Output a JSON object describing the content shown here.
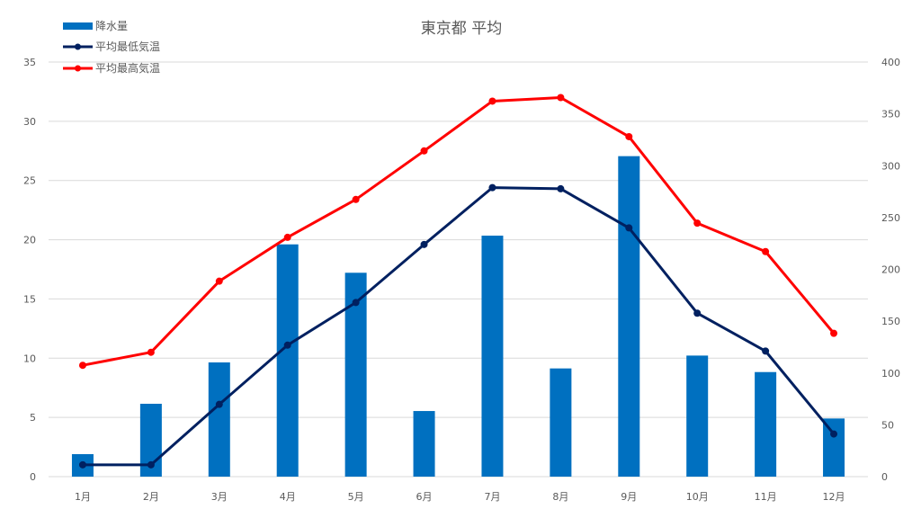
{
  "chart_data": {
    "type": "bar+line",
    "title": "東京都 平均",
    "categories": [
      "1月",
      "2月",
      "3月",
      "4月",
      "5月",
      "6月",
      "7月",
      "8月",
      "9月",
      "10月",
      "11月",
      "12月"
    ],
    "series": [
      {
        "name": "降水量",
        "type": "bar",
        "axis": "right",
        "color": "#0070C0",
        "values": [
          21.7,
          70.3,
          110.2,
          224.1,
          196.7,
          63.3,
          232.5,
          104.4,
          309.2,
          116.8,
          100.9,
          56.1
        ]
      },
      {
        "name": "平均最低気温",
        "type": "line",
        "axis": "left",
        "color": "#002060",
        "values": [
          1.0,
          1.0,
          6.1,
          11.1,
          14.7,
          19.6,
          24.4,
          24.3,
          21.0,
          13.8,
          10.6,
          3.6
        ]
      },
      {
        "name": "平均最高気温",
        "type": "line",
        "axis": "left",
        "color": "#FF0000",
        "values": [
          9.4,
          10.5,
          16.5,
          20.2,
          23.4,
          27.5,
          31.7,
          32.0,
          28.7,
          21.4,
          19.0,
          12.1
        ]
      }
    ],
    "y_left": {
      "min": 0,
      "max": 35,
      "step": 5,
      "ticks": [
        "0",
        "5",
        "10",
        "15",
        "20",
        "25",
        "30",
        "35"
      ]
    },
    "y_right": {
      "min": 0,
      "max": 400,
      "step": 50,
      "ticks": [
        "0",
        "50",
        "100",
        "150",
        "200",
        "250",
        "300",
        "350",
        "400"
      ]
    },
    "xlabel": "",
    "ylabel": "",
    "grid": true,
    "legend_position": "top-left"
  },
  "legend": [
    {
      "label": "降水量",
      "kind": "bar",
      "color": "#0070C0"
    },
    {
      "label": "平均最低気温",
      "kind": "line",
      "color": "#002060"
    },
    {
      "label": "平均最高気温",
      "kind": "line",
      "color": "#FF0000"
    }
  ]
}
